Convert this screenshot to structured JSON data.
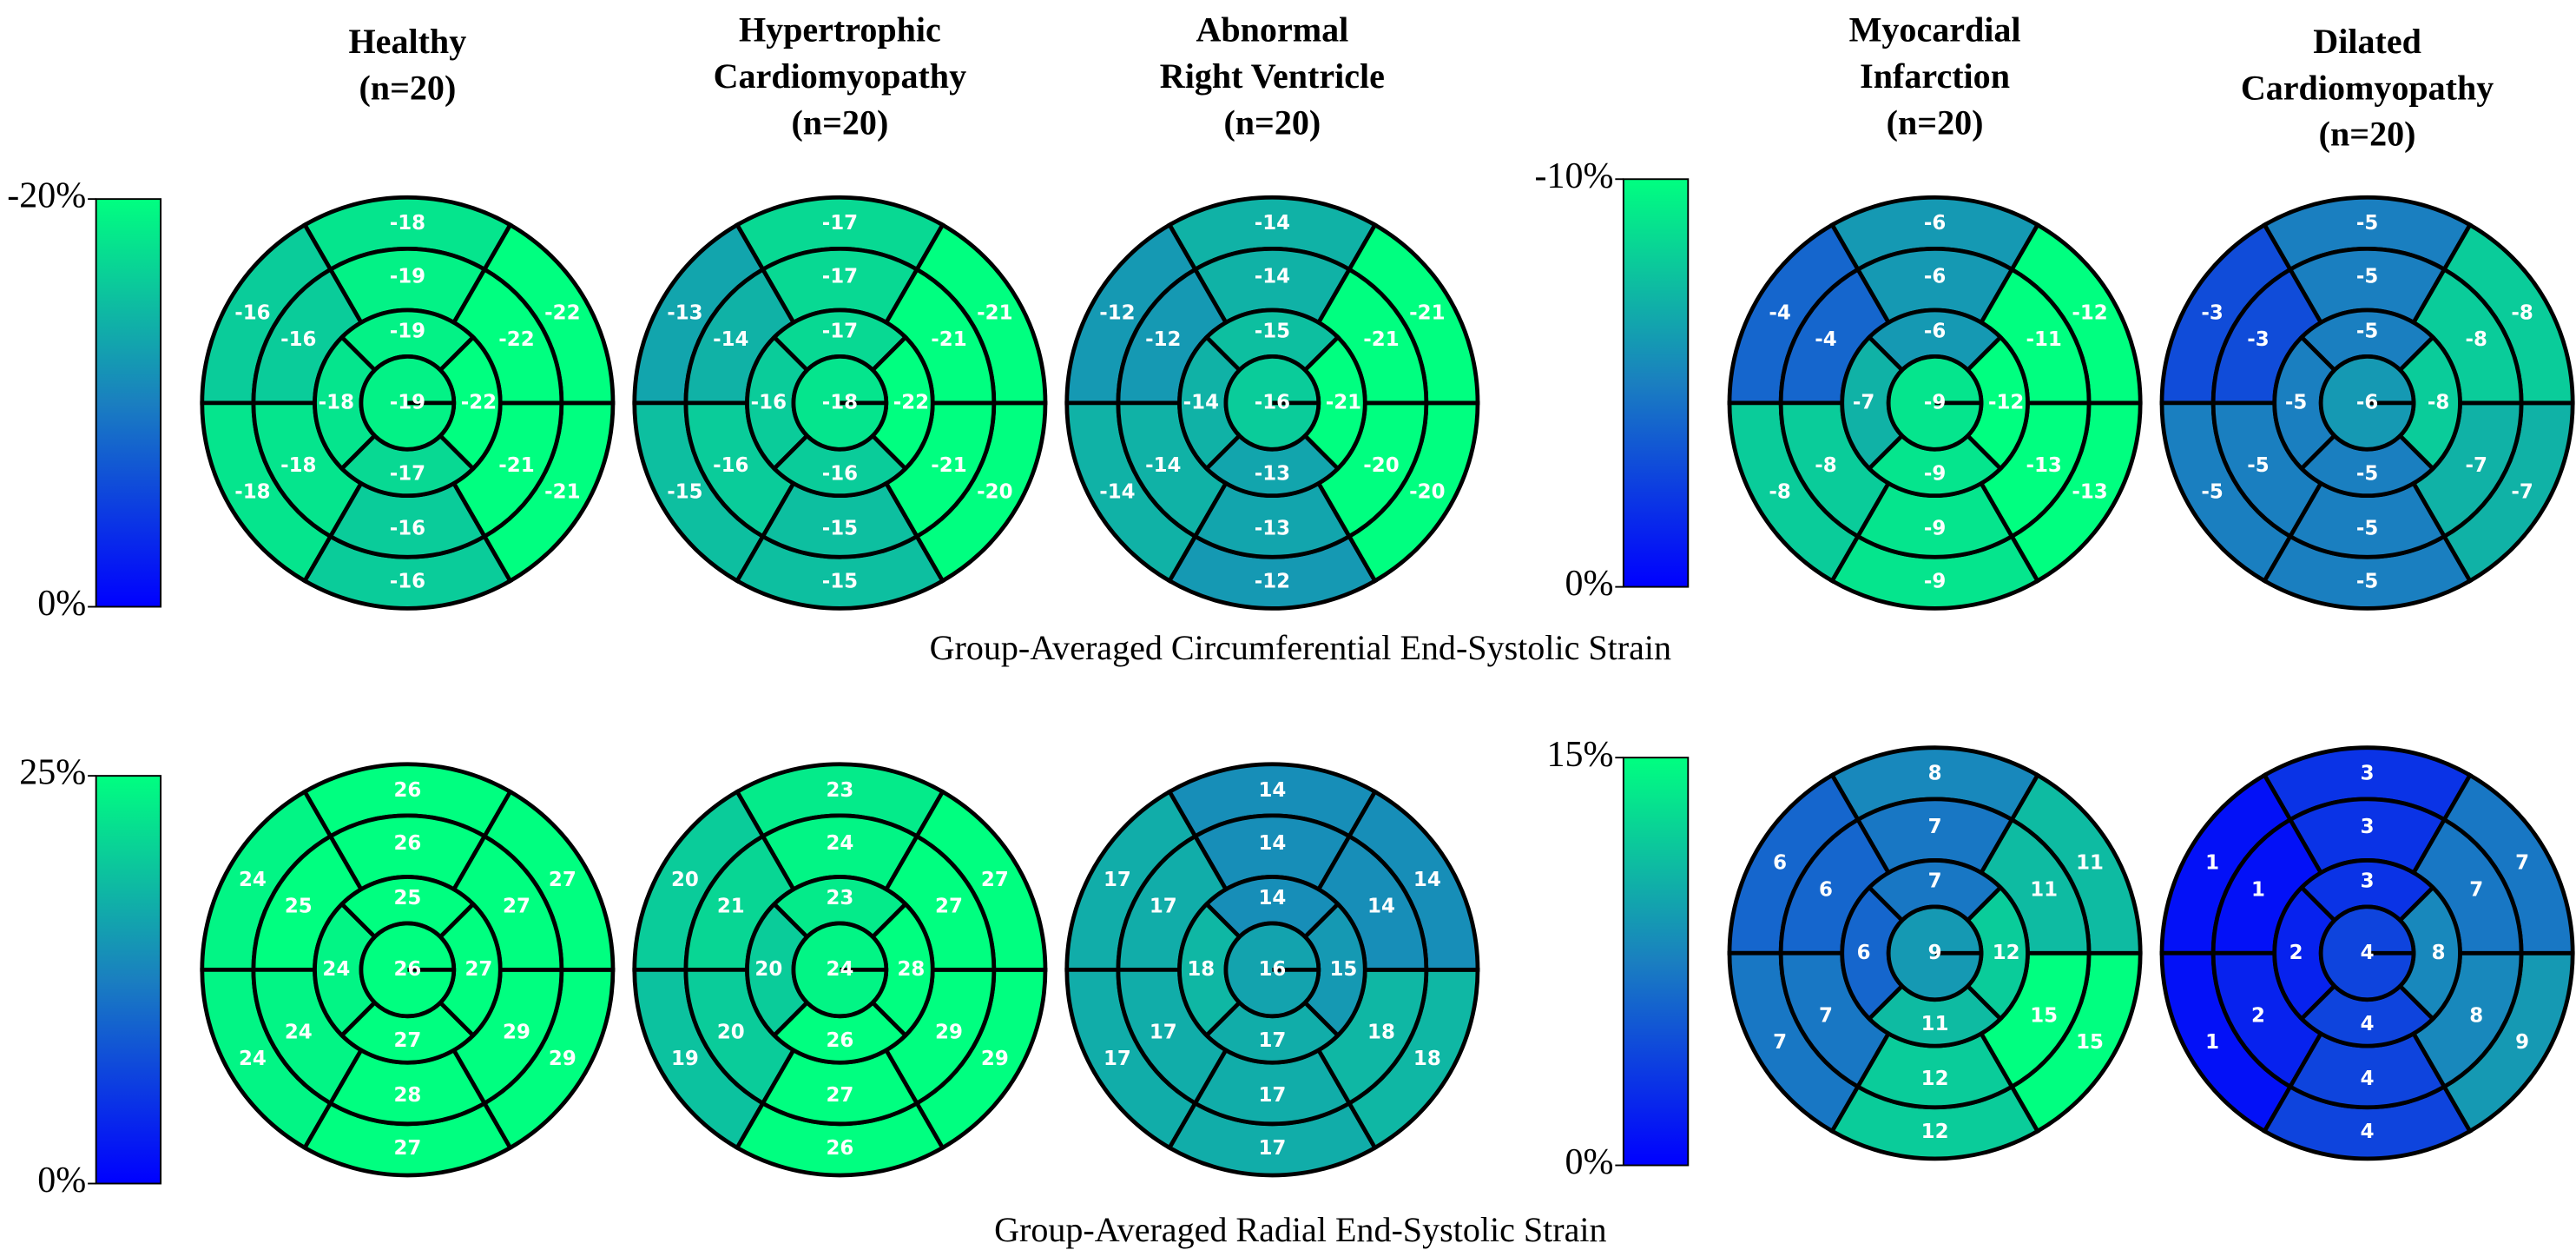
{
  "chart_data": [
    {
      "type": "bullseye",
      "title": "Group-Averaged Circumferential End-Systolic Strain",
      "colormap": [
        "#0000ff",
        "#1a7fc0",
        "#00ff80"
      ],
      "groups": [
        {
          "colorbar": {
            "clim": [
              0,
              -20
            ],
            "ticks": [
              {
                "value": -20,
                "label": "-20%"
              },
              {
                "value": 0,
                "label": "0%"
              }
            ]
          },
          "panels": [
            {
              "title": [
                "Healthy",
                "(n=20)"
              ],
              "values": [
                -18,
                -16,
                -18,
                -16,
                -21,
                -22,
                -19,
                -16,
                -18,
                -16,
                -21,
                -22,
                -19,
                -18,
                -17,
                -22,
                -19
              ]
            },
            {
              "title": [
                "Hypertrophic",
                "Cardiomyopathy",
                "(n=20)"
              ],
              "values": [
                -17,
                -13,
                -15,
                -15,
                -20,
                -21,
                -17,
                -14,
                -16,
                -15,
                -21,
                -21,
                -17,
                -16,
                -16,
                -22,
                -18
              ]
            },
            {
              "title": [
                "Abnormal",
                "Right Ventricle",
                "(n=20)"
              ],
              "values": [
                -14,
                -12,
                -14,
                -12,
                -20,
                -21,
                -14,
                -12,
                -14,
                -13,
                -20,
                -21,
                -15,
                -14,
                -13,
                -21,
                -16
              ]
            }
          ]
        },
        {
          "colorbar": {
            "clim": [
              0,
              -10
            ],
            "ticks": [
              {
                "value": -10,
                "label": "-10%"
              },
              {
                "value": 0,
                "label": "0%"
              }
            ]
          },
          "panels": [
            {
              "title": [
                "Myocardial",
                "Infarction",
                "(n=20)"
              ],
              "values": [
                -6,
                -4,
                -8,
                -9,
                -13,
                -12,
                -6,
                -4,
                -8,
                -9,
                -13,
                -11,
                -6,
                -7,
                -9,
                -12,
                -9
              ]
            },
            {
              "title": [
                "Dilated",
                "Cardiomyopathy",
                "(n=20)"
              ],
              "values": [
                -5,
                -3,
                -5,
                -5,
                -7,
                -8,
                -5,
                -3,
                -5,
                -5,
                -7,
                -8,
                -5,
                -5,
                -5,
                -8,
                -6
              ]
            }
          ]
        }
      ]
    },
    {
      "type": "bullseye",
      "title": "Group-Averaged Radial End-Systolic Strain",
      "colormap": [
        "#0000ff",
        "#1a7fc0",
        "#00ff80"
      ],
      "groups": [
        {
          "colorbar": {
            "clim": [
              0,
              25
            ],
            "ticks": [
              {
                "value": 25,
                "label": "25%"
              },
              {
                "value": 0,
                "label": "0%"
              }
            ]
          },
          "panels": [
            {
              "values": [
                26,
                24,
                24,
                27,
                29,
                27,
                26,
                25,
                24,
                28,
                29,
                27,
                25,
                24,
                27,
                27,
                26
              ]
            },
            {
              "values": [
                23,
                20,
                19,
                26,
                29,
                27,
                24,
                21,
                20,
                27,
                29,
                27,
                23,
                20,
                26,
                28,
                24
              ]
            },
            {
              "values": [
                14,
                17,
                17,
                17,
                18,
                14,
                14,
                17,
                17,
                17,
                18,
                14,
                14,
                18,
                17,
                15,
                16
              ]
            }
          ]
        },
        {
          "colorbar": {
            "clim": [
              0,
              15
            ],
            "ticks": [
              {
                "value": 15,
                "label": "15%"
              },
              {
                "value": 0,
                "label": "0%"
              }
            ]
          },
          "panels": [
            {
              "values": [
                8,
                6,
                7,
                12,
                15,
                11,
                7,
                6,
                7,
                12,
                15,
                11,
                7,
                6,
                11,
                12,
                9
              ]
            },
            {
              "values": [
                3,
                1,
                1,
                4,
                9,
                7,
                3,
                1,
                2,
                4,
                8,
                7,
                3,
                2,
                4,
                8,
                4
              ]
            }
          ]
        }
      ]
    }
  ]
}
